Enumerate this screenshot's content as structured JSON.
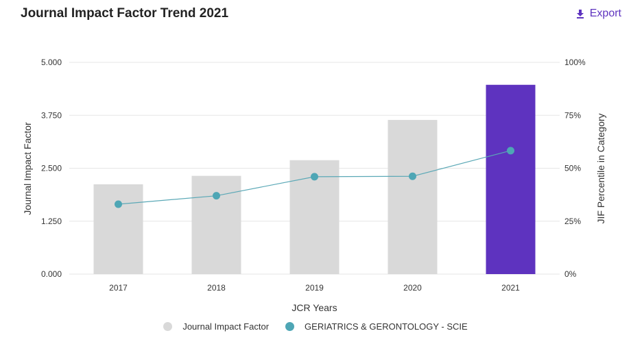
{
  "header": {
    "title": "Journal Impact Factor Trend 2021",
    "export_label": "Export",
    "export_icon": "download-icon"
  },
  "colors": {
    "bar_default": "#d9d9d9",
    "bar_highlight": "#5e33bf",
    "line": "#5aa8b6",
    "marker": "#4ea6b5",
    "grid": "#e6e6e6",
    "accent": "#5e33bf"
  },
  "chart_data": {
    "type": "bar",
    "title": "Journal Impact Factor Trend 2021",
    "xlabel": "JCR Years",
    "ylabel": "Journal Impact Factor",
    "y2label": "JIF Percentile in Category",
    "categories": [
      "2017",
      "2018",
      "2019",
      "2020",
      "2021"
    ],
    "ylim": [
      0,
      5
    ],
    "y_ticks": [
      "0.000",
      "1.250",
      "2.500",
      "3.750",
      "5.000"
    ],
    "y2lim": [
      0,
      100
    ],
    "y2_ticks": [
      "0%",
      "25%",
      "50%",
      "75%",
      "100%"
    ],
    "grid": true,
    "legend_position": "bottom-center",
    "highlight_category": "2021",
    "series": [
      {
        "name": "Journal Impact Factor",
        "type": "bar",
        "axis": "left",
        "values": [
          2.12,
          2.32,
          2.69,
          3.64,
          4.47
        ]
      },
      {
        "name": "GERIATRICS & GERONTOLOGY - SCIE",
        "type": "line",
        "axis": "right",
        "values": [
          33,
          37,
          46,
          46.2,
          58.3
        ]
      }
    ]
  }
}
